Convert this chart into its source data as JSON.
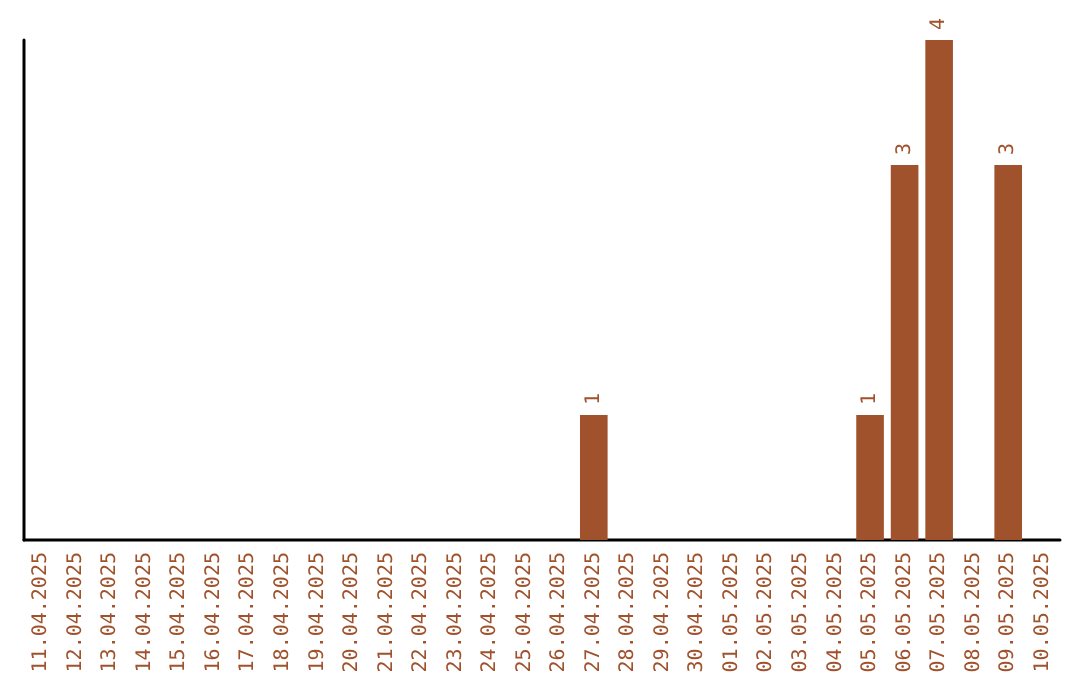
{
  "chart_data": {
    "type": "bar",
    "categories": [
      "11.04.2025",
      "12.04.2025",
      "13.04.2025",
      "14.04.2025",
      "15.04.2025",
      "16.04.2025",
      "17.04.2025",
      "18.04.2025",
      "19.04.2025",
      "20.04.2025",
      "21.04.2025",
      "22.04.2025",
      "23.04.2025",
      "24.04.2025",
      "25.04.2025",
      "26.04.2025",
      "27.04.2025",
      "28.04.2025",
      "29.04.2025",
      "30.04.2025",
      "01.05.2025",
      "02.05.2025",
      "03.05.2025",
      "04.05.2025",
      "05.05.2025",
      "06.05.2025",
      "07.05.2025",
      "08.05.2025",
      "09.05.2025",
      "10.05.2025"
    ],
    "values": [
      null,
      null,
      null,
      null,
      null,
      null,
      null,
      null,
      null,
      null,
      null,
      null,
      null,
      null,
      null,
      null,
      1,
      null,
      null,
      null,
      null,
      null,
      null,
      null,
      1,
      3,
      4,
      null,
      3,
      null
    ],
    "value_labels": [
      null,
      null,
      null,
      null,
      null,
      null,
      null,
      null,
      null,
      null,
      null,
      null,
      null,
      null,
      null,
      null,
      "1",
      null,
      null,
      null,
      null,
      null,
      null,
      null,
      "1",
      "3",
      "4",
      null,
      "3",
      null
    ],
    "color": "#a0522d",
    "grid": false
  }
}
